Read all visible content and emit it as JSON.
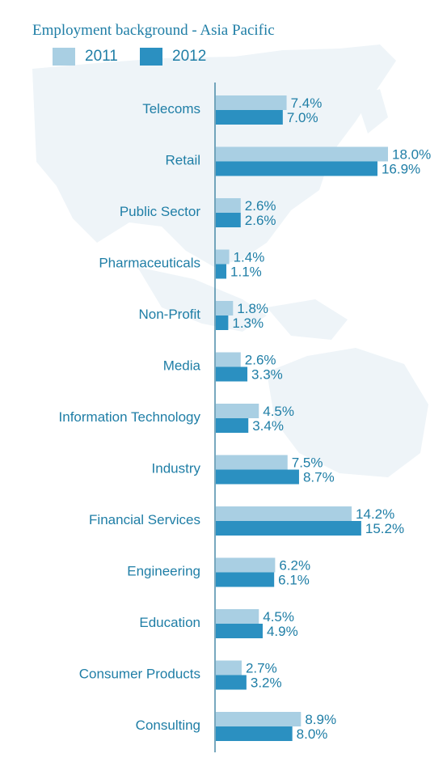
{
  "title": "Employment background - Asia Pacific",
  "colors": {
    "2011": "#a9cfe3",
    "2012": "#2b90c1",
    "text": "#1f7ea6",
    "axis": "#1f6f93"
  },
  "legend": [
    {
      "label": "2011",
      "color": "#a9cfe3"
    },
    {
      "label": "2012",
      "color": "#2b90c1"
    }
  ],
  "chart_data": {
    "type": "bar",
    "orientation": "horizontal",
    "title": "Employment background - Asia Pacific",
    "categories": [
      "Telecoms",
      "Retail",
      "Public Sector",
      "Pharmaceuticals",
      "Non-Profit",
      "Media",
      "Information Technology",
      "Industry",
      "Financial Services",
      "Engineering",
      "Education",
      "Consumer Products",
      "Consulting"
    ],
    "series": [
      {
        "name": "2011",
        "values": [
          7.4,
          18.0,
          2.6,
          1.4,
          1.8,
          2.6,
          4.5,
          7.5,
          14.2,
          6.2,
          4.5,
          2.7,
          8.9
        ],
        "labels": [
          "7.4%",
          "18.0%",
          "2.6%",
          "1.4%",
          "1.8%",
          "2.6%",
          "4.5%",
          "7.5%",
          "14.2%",
          "6.2%",
          "4.5%",
          "2.7%",
          "8.9%"
        ]
      },
      {
        "name": "2012",
        "values": [
          7.0,
          16.9,
          2.6,
          1.1,
          1.3,
          3.3,
          3.4,
          8.7,
          15.2,
          6.1,
          4.9,
          3.2,
          8.0
        ],
        "labels": [
          "7.0%",
          "16.9%",
          "2.6%",
          "1.1%",
          "1.3%",
          "3.3%",
          "3.4%",
          "8.7%",
          "15.2%",
          "6.1%",
          "4.9%",
          "3.2%",
          "8.0%"
        ]
      }
    ],
    "xlim": [
      0,
      18
    ],
    "grid": false,
    "legend_position": "top-left"
  }
}
